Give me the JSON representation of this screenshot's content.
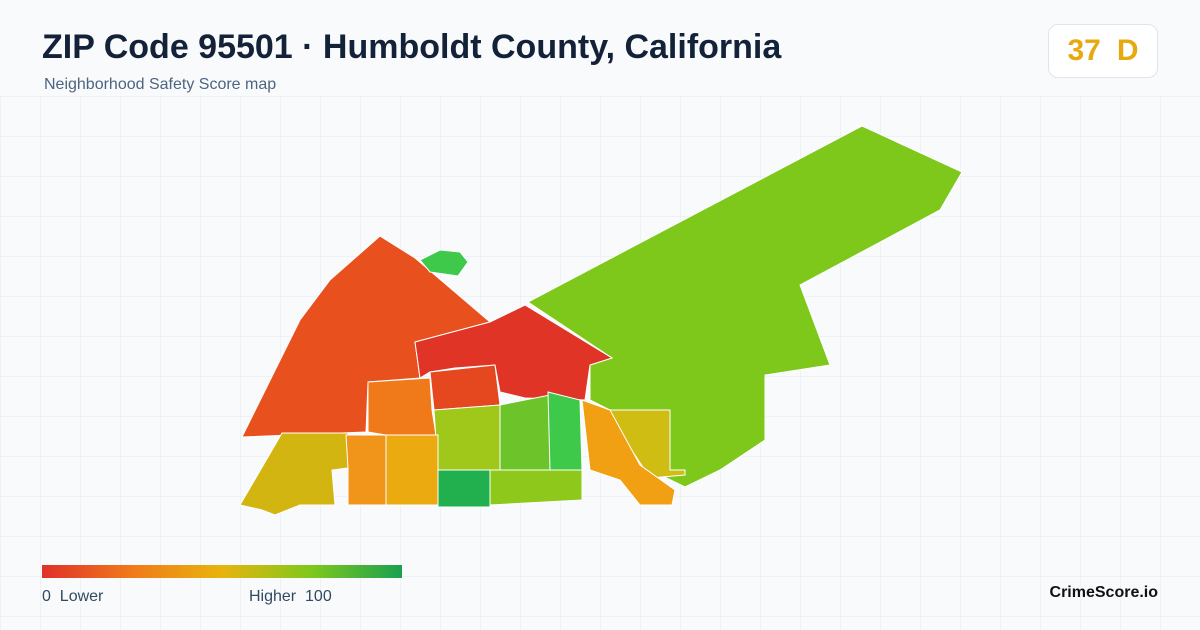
{
  "header": {
    "title": "ZIP Code 95501 · Humboldt County, California",
    "subtitle": "Neighborhood Safety Score map"
  },
  "badge": {
    "score": 37,
    "grade": "D"
  },
  "legend": {
    "min": 0,
    "min_label": "Lower",
    "max_label": "Higher",
    "max": 100
  },
  "brand": "CrimeScore.io"
}
